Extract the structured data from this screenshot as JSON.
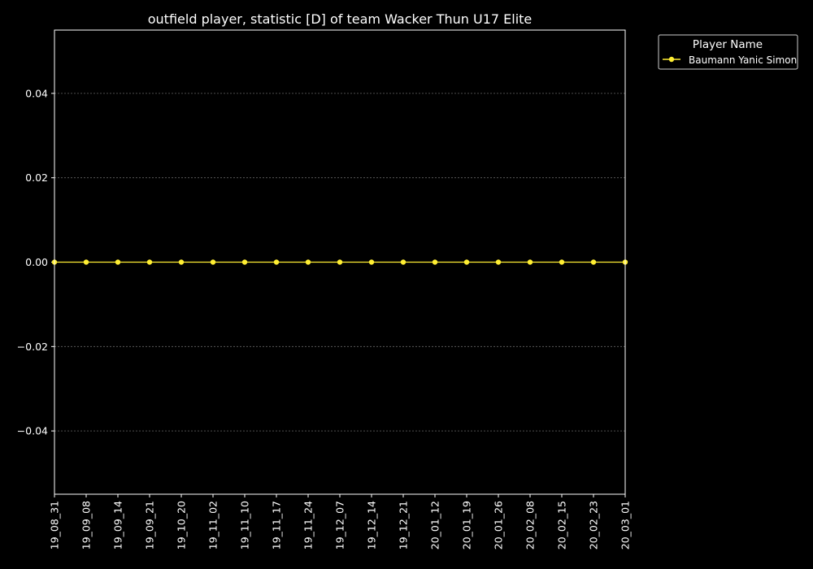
{
  "chart_data": {
    "type": "line",
    "title": "outfield player, statistic [D] of team Wacker Thun U17 Elite",
    "xlabel": "",
    "ylabel": "",
    "categories": [
      "19_08_31",
      "19_09_08",
      "19_09_14",
      "19_09_21",
      "19_10_20",
      "19_11_02",
      "19_11_10",
      "19_11_17",
      "19_11_24",
      "19_12_07",
      "19_12_14",
      "19_12_21",
      "20_01_12",
      "20_01_19",
      "20_01_26",
      "20_02_08",
      "20_02_15",
      "20_02_23",
      "20_03_01"
    ],
    "series": [
      {
        "name": "Baumann Yanic Simon",
        "values": [
          0,
          0,
          0,
          0,
          0,
          0,
          0,
          0,
          0,
          0,
          0,
          0,
          0,
          0,
          0,
          0,
          0,
          0,
          0
        ],
        "color": "#ffee33"
      }
    ],
    "ylim": [
      -0.055,
      0.055
    ],
    "yticks": [
      {
        "value": 0.04,
        "label": "0.04"
      },
      {
        "value": 0.02,
        "label": "0.02"
      },
      {
        "value": 0.0,
        "label": "0.00"
      },
      {
        "value": -0.02,
        "label": "−0.02"
      },
      {
        "value": -0.04,
        "label": "−0.04"
      }
    ],
    "grid": "horizontal",
    "legend": {
      "title": "Player Name",
      "placement": "outside-top-right"
    },
    "colors": {
      "background": "#000000",
      "axis": "#ffffff",
      "grid": "#666666"
    }
  }
}
